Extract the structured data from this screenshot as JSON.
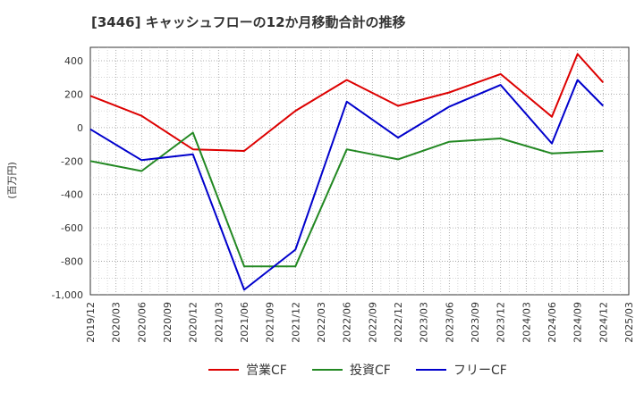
{
  "chart_data": {
    "type": "line",
    "title": "[3446]  キャッシュフローの12か月移動合計の推移",
    "ylabel": "(百万円)",
    "xlabel": "",
    "ylim": [
      -1000,
      480
    ],
    "yticks": [
      400,
      200,
      0,
      -200,
      -400,
      -600,
      -800,
      -1000
    ],
    "ytick_labels": [
      "400",
      "200",
      "0",
      "-200",
      "-400",
      "-600",
      "-800",
      "-1,000"
    ],
    "xticks": [
      "2019/12",
      "2020/03",
      "2020/06",
      "2020/09",
      "2020/12",
      "2021/03",
      "2021/06",
      "2021/09",
      "2021/12",
      "2022/03",
      "2022/06",
      "2022/09",
      "2022/12",
      "2023/03",
      "2023/06",
      "2023/09",
      "2023/12",
      "2024/03",
      "2024/06",
      "2024/09",
      "2024/12",
      "2025/03"
    ],
    "grid": true,
    "legend_position": "bottom",
    "series": [
      {
        "name": "営業CF",
        "color": "#dd0000",
        "x": [
          "2019/12",
          "2020/06",
          "2020/12",
          "2021/06",
          "2021/12",
          "2022/06",
          "2022/12",
          "2023/06",
          "2023/12",
          "2024/06",
          "2024/09",
          "2024/12"
        ],
        "values": [
          190,
          70,
          -130,
          -140,
          100,
          285,
          130,
          210,
          320,
          65,
          440,
          270
        ]
      },
      {
        "name": "投資CF",
        "color": "#228822",
        "x": [
          "2019/12",
          "2020/06",
          "2020/12",
          "2021/06",
          "2021/12",
          "2022/06",
          "2022/12",
          "2023/06",
          "2023/12",
          "2024/06",
          "2024/12"
        ],
        "values": [
          -200,
          -260,
          -30,
          -830,
          -830,
          -130,
          -190,
          -85,
          -65,
          -155,
          -140
        ]
      },
      {
        "name": "フリーCF",
        "color": "#0000cc",
        "x": [
          "2019/12",
          "2020/06",
          "2020/12",
          "2021/06",
          "2021/12",
          "2022/06",
          "2022/12",
          "2023/06",
          "2023/12",
          "2024/06",
          "2024/09",
          "2024/12"
        ],
        "values": [
          -10,
          -195,
          -160,
          -970,
          -730,
          155,
          -60,
          125,
          255,
          -95,
          285,
          130
        ]
      }
    ]
  }
}
